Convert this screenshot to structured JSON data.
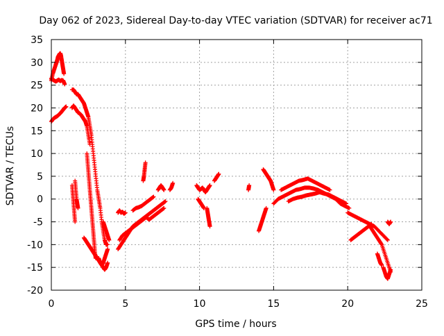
{
  "chart_data": {
    "type": "scatter",
    "title": "Day 062 of 2023, Sidereal Day-to-day VTEC variation (SDTVAR) for receiver ac71",
    "xlabel": "GPS time / hours",
    "ylabel": "SDTVAR / TECUs",
    "xlim": [
      0,
      25
    ],
    "ylim": [
      -20,
      35
    ],
    "xticks": [
      0,
      5,
      10,
      15,
      20,
      25
    ],
    "yticks": [
      -20,
      -15,
      -10,
      -5,
      0,
      5,
      10,
      15,
      20,
      25,
      30,
      35
    ],
    "grid": true,
    "marker": "+",
    "series": [
      {
        "name": "SDTVAR",
        "color": "#ff0000",
        "segments": [
          {
            "x": [
              0.0,
              0.1,
              0.2,
              0.3,
              0.35,
              0.4,
              0.45,
              0.5,
              0.55,
              0.6,
              0.65,
              0.7,
              0.75,
              0.8,
              0.85
            ],
            "y": [
              26,
              27.5,
              28.5,
              29.5,
              30,
              30.5,
              31.2,
              31.5,
              31.8,
              32,
              31.5,
              30.5,
              29.5,
              28.5,
              27.5
            ]
          },
          {
            "x": [
              0.0,
              0.1,
              0.2,
              0.3,
              0.4,
              0.5,
              0.6,
              0.7,
              0.8,
              0.9
            ],
            "y": [
              26.5,
              26.2,
              26,
              25.8,
              26,
              26.2,
              25.9,
              26.1,
              26,
              25.2
            ]
          },
          {
            "x": [
              0.0,
              0.1,
              0.2,
              0.3,
              0.4,
              0.5,
              0.6,
              0.7,
              0.8,
              0.9,
              1.0
            ],
            "y": [
              17,
              17.5,
              17.8,
              18,
              18.2,
              18.5,
              18.8,
              19.2,
              19.6,
              20,
              20.3
            ]
          },
          {
            "x": [
              1.4,
              1.5,
              1.6,
              1.7,
              1.8,
              1.9,
              2.0,
              2.1,
              2.2,
              2.3,
              2.4,
              2.5,
              2.6,
              2.7,
              2.8,
              2.9,
              3.0,
              3.1,
              3.2,
              3.3,
              3.4,
              3.5,
              3.6,
              3.7,
              3.8
            ],
            "y": [
              24,
              24,
              23.5,
              23,
              23,
              22.5,
              22,
              21.5,
              21,
              20,
              19,
              18,
              16,
              14,
              11,
              8,
              5,
              2,
              0,
              -2,
              -5,
              -7,
              -9,
              -10,
              -10
            ]
          },
          {
            "x": [
              1.4,
              1.5,
              1.6,
              1.7,
              1.8,
              1.9,
              2.0,
              2.1,
              2.2,
              2.3,
              2.4,
              2.5,
              2.6
            ],
            "y": [
              20,
              20.5,
              20,
              19.5,
              19,
              18.8,
              18.5,
              18,
              17.5,
              17,
              16,
              14,
              12
            ]
          },
          {
            "x": [
              2.4,
              2.45,
              2.5,
              2.55,
              2.6,
              2.65,
              2.7,
              2.75,
              2.8,
              2.85,
              2.9,
              2.95,
              3.0
            ],
            "y": [
              10,
              8,
              6,
              4,
              2,
              0,
              -2,
              -4,
              -6,
              -8,
              -10,
              -12,
              -13
            ]
          },
          {
            "x": [
              1.4,
              1.45,
              1.5,
              1.55,
              1.6
            ],
            "y": [
              3,
              1,
              -1,
              -3,
              -5
            ]
          },
          {
            "x": [
              1.6,
              1.65,
              1.7,
              1.75,
              1.8
            ],
            "y": [
              4,
              2,
              0,
              -1,
              -2
            ]
          },
          {
            "x": [
              2.2,
              2.3,
              2.4,
              2.5,
              2.6,
              2.7,
              2.8,
              2.9,
              3.0,
              3.1,
              3.2,
              3.3,
              3.4,
              3.5,
              3.6,
              3.7,
              3.8
            ],
            "y": [
              -8.5,
              -9,
              -9.5,
              -10,
              -10.5,
              -11,
              -11.5,
              -12,
              -12.5,
              -13,
              -13.5,
              -14,
              -14.5,
              -14,
              -13,
              -12,
              -11
            ]
          },
          {
            "x": [
              3.2,
              3.3,
              3.4,
              3.5,
              3.6,
              3.7,
              3.8
            ],
            "y": [
              -13,
              -14,
              -14.5,
              -15,
              -15.5,
              -15,
              -14
            ]
          },
          {
            "x": [
              3.5,
              3.6,
              3.7,
              3.8,
              3.9
            ],
            "y": [
              -5,
              -6,
              -7,
              -8,
              -9
            ]
          },
          {
            "x": [
              4.5,
              4.7,
              4.9,
              5.1,
              5.3,
              5.5,
              5.7,
              5.9,
              6.1,
              6.3,
              6.5,
              6.7,
              6.9,
              7.1,
              7.3,
              7.5,
              7.7
            ],
            "y": [
              -11,
              -10,
              -9,
              -8,
              -7,
              -6,
              -5.5,
              -5,
              -4.5,
              -4,
              -3.5,
              -3,
              -2.5,
              -2,
              -1.5,
              -1,
              -0.5
            ]
          },
          {
            "x": [
              4.6,
              4.8,
              5.0,
              5.2,
              5.4,
              5.6,
              5.8,
              6.0,
              6.2,
              6.4,
              6.6,
              6.8,
              7.0,
              7.2,
              7.4,
              7.6
            ],
            "y": [
              -9,
              -8,
              -7.5,
              -7,
              -6.5,
              -6,
              -5.5,
              -5,
              -4.5,
              -4,
              -4.5,
              -4,
              -3.5,
              -3,
              -2.5,
              -2
            ]
          },
          {
            "x": [
              4.5,
              4.6,
              4.7,
              4.8,
              4.9,
              5.0
            ],
            "y": [
              -3,
              -2.5,
              -3,
              -2.8,
              -3.2,
              -3
            ]
          },
          {
            "x": [
              5.5,
              5.7,
              5.9,
              6.1,
              6.3,
              6.5,
              6.7,
              6.9
            ],
            "y": [
              -2.5,
              -2,
              -1.8,
              -1.5,
              -1,
              -0.5,
              0,
              0.5
            ]
          },
          {
            "x": [
              6.2,
              6.25,
              6.3,
              6.35
            ],
            "y": [
              4,
              5,
              6.5,
              8
            ]
          },
          {
            "x": [
              7.2,
              7.3,
              7.4,
              7.5,
              7.6
            ],
            "y": [
              2,
              2.5,
              3,
              2.5,
              2
            ]
          },
          {
            "x": [
              8.0,
              8.1,
              8.2
            ],
            "y": [
              2,
              2.5,
              3.5
            ]
          },
          {
            "x": [
              9.8,
              9.9,
              10.0,
              10.1,
              10.2,
              10.3,
              10.4,
              10.5,
              10.6,
              10.7
            ],
            "y": [
              3,
              2.5,
              2,
              2.2,
              2.5,
              2,
              1.5,
              2,
              2.5,
              3
            ]
          },
          {
            "x": [
              9.9,
              10.0,
              10.1,
              10.2,
              10.3
            ],
            "y": [
              0,
              -0.5,
              -1,
              -1.5,
              -2
            ]
          },
          {
            "x": [
              10.5,
              10.55,
              10.6,
              10.65,
              10.7
            ],
            "y": [
              -2,
              -3,
              -4,
              -5,
              -6
            ]
          },
          {
            "x": [
              11.0,
              11.1,
              11.2,
              11.3
            ],
            "y": [
              4,
              4.5,
              5,
              5.5
            ]
          },
          {
            "x": [
              13.3,
              13.35
            ],
            "y": [
              2,
              3
            ]
          },
          {
            "x": [
              14.0,
              14.1,
              14.2,
              14.3,
              14.4,
              14.5
            ],
            "y": [
              -7,
              -6,
              -5,
              -4,
              -3,
              -2
            ]
          },
          {
            "x": [
              14.3,
              14.4,
              14.5,
              14.6,
              14.7,
              14.8,
              14.9,
              15.0
            ],
            "y": [
              6.5,
              6,
              5.5,
              5,
              4.5,
              4,
              3,
              2
            ]
          },
          {
            "x": [
              15.0,
              15.3,
              15.6,
              15.9,
              16.2,
              16.5,
              16.8,
              17.1,
              17.4,
              17.7,
              18.0,
              18.3,
              18.6,
              18.9,
              19.2,
              19.5,
              19.8,
              20.1
            ],
            "y": [
              -1,
              0,
              0.5,
              1,
              1.5,
              2,
              2.2,
              2.5,
              2.5,
              2.3,
              2,
              1.5,
              1,
              0.5,
              0,
              -1,
              -1.5,
              -2
            ]
          },
          {
            "x": [
              15.5,
              15.8,
              16.1,
              16.4,
              16.7,
              17.0,
              17.3,
              17.6,
              17.9,
              18.2,
              18.5,
              18.8
            ],
            "y": [
              2,
              2.5,
              3,
              3.5,
              4,
              4.2,
              4.5,
              4,
              3.5,
              3,
              2.5,
              2
            ]
          },
          {
            "x": [
              16.0,
              16.3,
              16.6,
              16.9,
              17.2,
              17.5,
              17.8,
              18.1,
              18.4,
              18.7,
              19.0,
              19.3,
              19.6,
              19.9
            ],
            "y": [
              -0.5,
              0,
              0.3,
              0.5,
              0.8,
              1,
              1.2,
              1.5,
              1.2,
              1,
              0.5,
              0,
              -0.5,
              -1
            ]
          },
          {
            "x": [
              20.0,
              20.3,
              20.6,
              20.9,
              21.2,
              21.5,
              21.8,
              22.1,
              22.4,
              22.7
            ],
            "y": [
              -3,
              -3.5,
              -4,
              -4.5,
              -5,
              -5.5,
              -6,
              -7,
              -8,
              -9
            ]
          },
          {
            "x": [
              20.2,
              20.4,
              20.6,
              20.8,
              21.0,
              21.2,
              21.4,
              21.6
            ],
            "y": [
              -9,
              -8.5,
              -8,
              -7.5,
              -7,
              -6.5,
              -6,
              -5.5
            ]
          },
          {
            "x": [
              21.5,
              21.7,
              21.9,
              22.1,
              22.3,
              22.5,
              22.7,
              22.9
            ],
            "y": [
              -6,
              -7,
              -8,
              -9,
              -10,
              -12,
              -14,
              -16
            ]
          },
          {
            "x": [
              22.0,
              22.1,
              22.2,
              22.3
            ],
            "y": [
              -12,
              -13,
              -14,
              -14.5
            ]
          },
          {
            "x": [
              22.4,
              22.5,
              22.6,
              22.7,
              22.8,
              22.9
            ],
            "y": [
              -15,
              -16,
              -17,
              -17.5,
              -16.5,
              -15.5
            ]
          },
          {
            "x": [
              22.7,
              22.8,
              22.9
            ],
            "y": [
              -5,
              -5.5,
              -5
            ]
          }
        ]
      }
    ]
  }
}
